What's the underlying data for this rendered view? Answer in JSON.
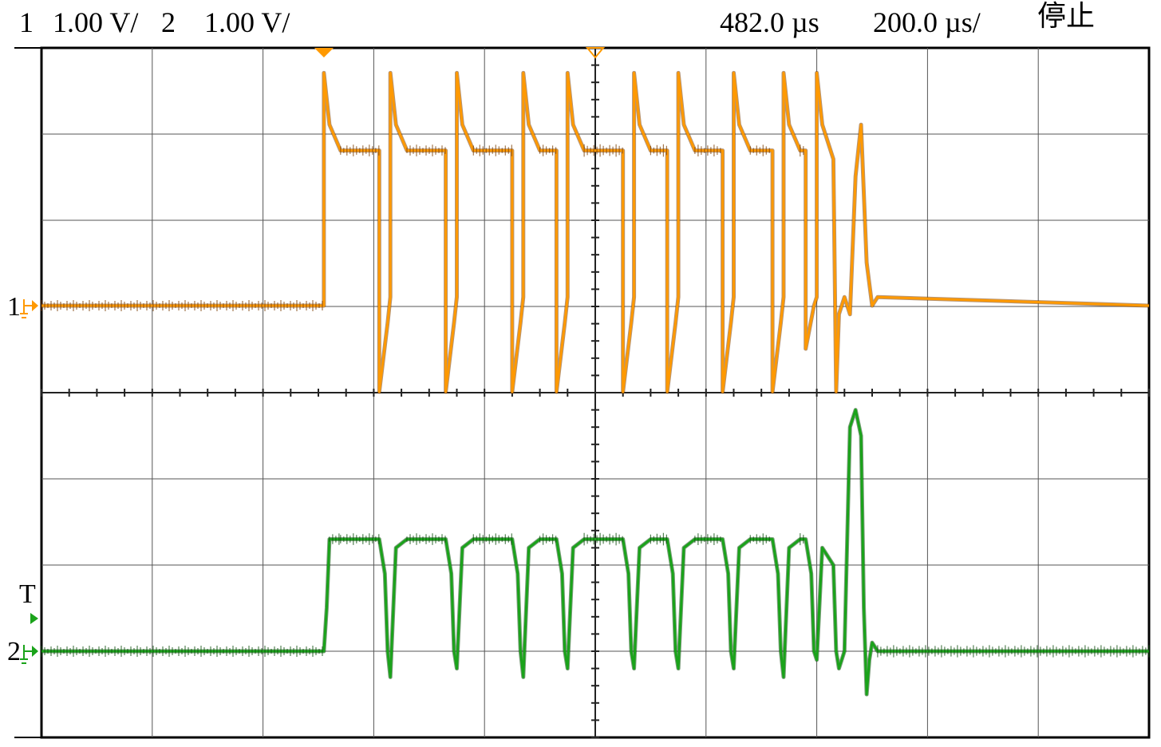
{
  "header": {
    "ch1_label": "1",
    "ch1_scale": "1.00 V/",
    "ch2_label": "2",
    "ch2_scale": "1.00 V/",
    "delay": "482.0 µs",
    "timebase": "200.0 µs/",
    "run_state": "停止"
  },
  "markers": {
    "ch1_marker": "1",
    "trigger_marker": "T",
    "ch2_marker": "2"
  },
  "colors": {
    "ch1": "#ff9900",
    "ch1_dark": "#7a3d00",
    "ch2": "#1aa31a",
    "ch2_dark": "#0b4d0b",
    "grid": "#000000",
    "background": "#ffffff"
  },
  "chart_data": {
    "type": "line",
    "title": "",
    "xlabel": "",
    "ylabel": "",
    "grid": true,
    "x_unit": "µs",
    "xlim": [
      0,
      2000
    ],
    "ylim": [
      -4,
      4
    ],
    "x_divisions": 10,
    "y_divisions": 8,
    "series": [
      {
        "name": "1",
        "color": "#ff9900",
        "points": [
          [
            0,
            0
          ],
          [
            510,
            0
          ],
          [
            510,
            2.7
          ],
          [
            520,
            2.1
          ],
          [
            540,
            1.8
          ],
          [
            610,
            1.8
          ],
          [
            610,
            -1.0
          ],
          [
            625,
            -0.2
          ],
          [
            630,
            0.1
          ],
          [
            630,
            2.7
          ],
          [
            640,
            2.1
          ],
          [
            660,
            1.8
          ],
          [
            730,
            1.8
          ],
          [
            730,
            -1.0
          ],
          [
            745,
            -0.2
          ],
          [
            750,
            0.1
          ],
          [
            750,
            2.7
          ],
          [
            760,
            2.1
          ],
          [
            780,
            1.8
          ],
          [
            850,
            1.8
          ],
          [
            850,
            -1.0
          ],
          [
            865,
            -0.2
          ],
          [
            870,
            0.1
          ],
          [
            870,
            2.7
          ],
          [
            880,
            2.1
          ],
          [
            900,
            1.8
          ],
          [
            930,
            1.8
          ],
          [
            930,
            -1.0
          ],
          [
            945,
            -0.2
          ],
          [
            950,
            0.1
          ],
          [
            950,
            2.7
          ],
          [
            960,
            2.1
          ],
          [
            980,
            1.8
          ],
          [
            1050,
            1.8
          ],
          [
            1050,
            -1.0
          ],
          [
            1065,
            -0.2
          ],
          [
            1070,
            0.1
          ],
          [
            1070,
            2.7
          ],
          [
            1080,
            2.1
          ],
          [
            1100,
            1.8
          ],
          [
            1130,
            1.8
          ],
          [
            1130,
            -1.0
          ],
          [
            1145,
            -0.2
          ],
          [
            1150,
            0.1
          ],
          [
            1150,
            2.7
          ],
          [
            1160,
            2.1
          ],
          [
            1180,
            1.8
          ],
          [
            1230,
            1.8
          ],
          [
            1230,
            -1.0
          ],
          [
            1245,
            -0.2
          ],
          [
            1250,
            0.1
          ],
          [
            1250,
            2.7
          ],
          [
            1260,
            2.1
          ],
          [
            1280,
            1.8
          ],
          [
            1320,
            1.8
          ],
          [
            1320,
            -1.0
          ],
          [
            1335,
            -0.2
          ],
          [
            1340,
            0.1
          ],
          [
            1340,
            2.7
          ],
          [
            1350,
            2.1
          ],
          [
            1370,
            1.8
          ],
          [
            1380,
            1.8
          ],
          [
            1380,
            -0.5
          ],
          [
            1395,
            0.0
          ],
          [
            1400,
            0.1
          ],
          [
            1400,
            2.7
          ],
          [
            1410,
            2.1
          ],
          [
            1430,
            1.7
          ],
          [
            1435,
            -1.0
          ],
          [
            1440,
            -0.1
          ],
          [
            1450,
            0.1
          ],
          [
            1460,
            -0.1
          ],
          [
            1470,
            1.5
          ],
          [
            1480,
            2.1
          ],
          [
            1490,
            0.5
          ],
          [
            1500,
            0.0
          ],
          [
            1510,
            0.1
          ],
          [
            2000,
            0
          ]
        ]
      },
      {
        "name": "2",
        "color": "#1aa31a",
        "points": [
          [
            0,
            0
          ],
          [
            510,
            0
          ],
          [
            515,
            0.5
          ],
          [
            520,
            1.3
          ],
          [
            540,
            1.3
          ],
          [
            610,
            1.3
          ],
          [
            620,
            0.9
          ],
          [
            625,
            0.0
          ],
          [
            630,
            -0.3
          ],
          [
            640,
            1.2
          ],
          [
            660,
            1.3
          ],
          [
            730,
            1.3
          ],
          [
            740,
            0.9
          ],
          [
            745,
            0.0
          ],
          [
            750,
            -0.2
          ],
          [
            760,
            1.2
          ],
          [
            780,
            1.3
          ],
          [
            850,
            1.3
          ],
          [
            860,
            0.9
          ],
          [
            865,
            0.0
          ],
          [
            870,
            -0.3
          ],
          [
            880,
            1.2
          ],
          [
            900,
            1.3
          ],
          [
            930,
            1.3
          ],
          [
            940,
            0.9
          ],
          [
            945,
            0.0
          ],
          [
            950,
            -0.2
          ],
          [
            960,
            1.2
          ],
          [
            980,
            1.3
          ],
          [
            1050,
            1.3
          ],
          [
            1060,
            0.9
          ],
          [
            1065,
            0.0
          ],
          [
            1070,
            -0.2
          ],
          [
            1080,
            1.2
          ],
          [
            1100,
            1.3
          ],
          [
            1130,
            1.3
          ],
          [
            1140,
            0.9
          ],
          [
            1145,
            0.0
          ],
          [
            1150,
            -0.2
          ],
          [
            1160,
            1.2
          ],
          [
            1180,
            1.3
          ],
          [
            1230,
            1.3
          ],
          [
            1240,
            0.9
          ],
          [
            1245,
            0.0
          ],
          [
            1250,
            -0.2
          ],
          [
            1260,
            1.2
          ],
          [
            1280,
            1.3
          ],
          [
            1320,
            1.3
          ],
          [
            1330,
            0.9
          ],
          [
            1335,
            0.0
          ],
          [
            1340,
            -0.3
          ],
          [
            1350,
            1.2
          ],
          [
            1370,
            1.3
          ],
          [
            1380,
            1.3
          ],
          [
            1390,
            0.9
          ],
          [
            1395,
            0.0
          ],
          [
            1400,
            -0.1
          ],
          [
            1410,
            1.2
          ],
          [
            1430,
            1.0
          ],
          [
            1435,
            0.0
          ],
          [
            1440,
            -0.2
          ],
          [
            1450,
            0.0
          ],
          [
            1460,
            2.6
          ],
          [
            1470,
            2.8
          ],
          [
            1480,
            2.5
          ],
          [
            1485,
            0.5
          ],
          [
            1490,
            -0.5
          ],
          [
            1495,
            -0.1
          ],
          [
            1500,
            0.1
          ],
          [
            1510,
            0.0
          ],
          [
            2000,
            0
          ]
        ]
      }
    ]
  }
}
